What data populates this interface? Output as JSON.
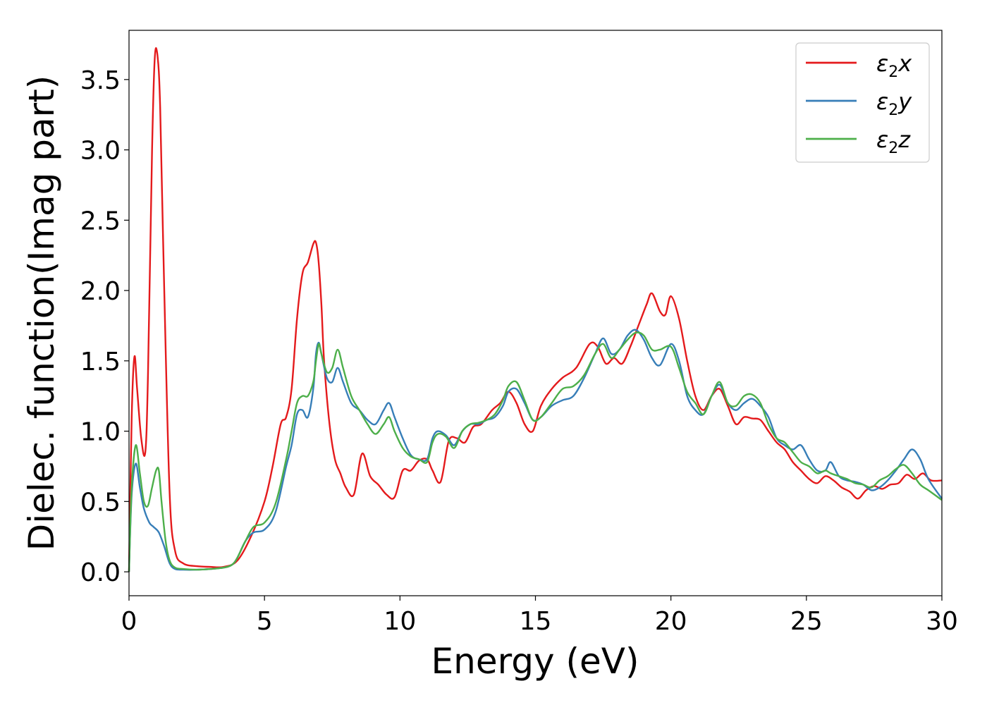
{
  "chart_data": {
    "type": "line",
    "title": "",
    "xlabel": "Energy (eV)",
    "ylabel": "Dielec. function(Imag part)",
    "xlim": [
      0,
      30
    ],
    "ylim": [
      -0.17,
      3.85
    ],
    "xticks": [
      0,
      5,
      10,
      15,
      20,
      25,
      30
    ],
    "yticks": [
      0.0,
      0.5,
      1.0,
      1.5,
      2.0,
      2.5,
      3.0,
      3.5
    ],
    "xtick_labels": [
      "0",
      "5",
      "10",
      "15",
      "20",
      "25",
      "30"
    ],
    "ytick_labels": [
      "0.0",
      "0.5",
      "1.0",
      "1.5",
      "2.0",
      "2.5",
      "3.0",
      "3.5"
    ],
    "grid": false,
    "legend_position": "top-right",
    "series": [
      {
        "name": "ε₂x",
        "legend_base": "ε",
        "legend_sub": "2",
        "legend_tail": "x",
        "color": "#e41a1c",
        "x": [
          0,
          0.1,
          0.2,
          0.3,
          0.45,
          0.6,
          0.7,
          0.85,
          0.95,
          1.05,
          1.15,
          1.3,
          1.5,
          1.7,
          2.0,
          2.5,
          3.0,
          3.5,
          4.0,
          4.5,
          5.0,
          5.3,
          5.6,
          5.8,
          6.0,
          6.2,
          6.4,
          6.6,
          6.8,
          6.9,
          7.0,
          7.1,
          7.2,
          7.4,
          7.6,
          7.8,
          8.0,
          8.3,
          8.6,
          8.9,
          9.2,
          9.5,
          9.8,
          10.1,
          10.4,
          10.7,
          11.0,
          11.2,
          11.5,
          11.8,
          12.1,
          12.4,
          12.7,
          13.0,
          13.4,
          13.7,
          14.0,
          14.3,
          14.6,
          14.9,
          15.2,
          15.6,
          16.0,
          16.5,
          17.0,
          17.3,
          17.6,
          17.9,
          18.2,
          18.5,
          18.8,
          19.1,
          19.3,
          19.6,
          19.8,
          20.0,
          20.3,
          20.6,
          20.9,
          21.2,
          21.5,
          21.8,
          22.1,
          22.4,
          22.7,
          23.0,
          23.3,
          23.6,
          23.9,
          24.2,
          24.5,
          24.8,
          25.1,
          25.4,
          25.7,
          26.0,
          26.3,
          26.6,
          26.9,
          27.2,
          27.5,
          27.8,
          28.1,
          28.4,
          28.7,
          29.0,
          29.3,
          29.6,
          30.0
        ],
        "values": [
          0.0,
          1.1,
          1.53,
          1.3,
          0.95,
          0.85,
          1.4,
          3.0,
          3.65,
          3.67,
          3.3,
          2.0,
          0.55,
          0.15,
          0.06,
          0.04,
          0.035,
          0.035,
          0.08,
          0.25,
          0.5,
          0.75,
          1.05,
          1.1,
          1.3,
          1.8,
          2.12,
          2.2,
          2.33,
          2.34,
          2.2,
          1.9,
          1.5,
          1.05,
          0.8,
          0.7,
          0.6,
          0.55,
          0.84,
          0.68,
          0.62,
          0.55,
          0.53,
          0.72,
          0.72,
          0.79,
          0.8,
          0.72,
          0.64,
          0.93,
          0.95,
          0.92,
          1.03,
          1.05,
          1.15,
          1.2,
          1.28,
          1.2,
          1.05,
          1.0,
          1.18,
          1.3,
          1.38,
          1.45,
          1.62,
          1.6,
          1.48,
          1.52,
          1.48,
          1.6,
          1.75,
          1.9,
          1.98,
          1.85,
          1.83,
          1.96,
          1.8,
          1.5,
          1.25,
          1.15,
          1.25,
          1.3,
          1.18,
          1.05,
          1.1,
          1.09,
          1.08,
          1.0,
          0.92,
          0.87,
          0.78,
          0.72,
          0.66,
          0.63,
          0.68,
          0.65,
          0.6,
          0.57,
          0.52,
          0.58,
          0.61,
          0.59,
          0.62,
          0.63,
          0.69,
          0.66,
          0.7,
          0.65,
          0.65
        ]
      },
      {
        "name": "ε₂y",
        "legend_base": "ε",
        "legend_sub": "2",
        "legend_tail": "y",
        "color": "#377eb8",
        "x": [
          0,
          0.1,
          0.25,
          0.4,
          0.55,
          0.75,
          0.9,
          1.1,
          1.3,
          1.5,
          1.7,
          2.0,
          2.5,
          3.0,
          3.5,
          3.8,
          4.0,
          4.3,
          4.6,
          5.0,
          5.4,
          5.8,
          6.0,
          6.2,
          6.4,
          6.6,
          6.8,
          6.9,
          7.0,
          7.1,
          7.3,
          7.5,
          7.7,
          7.9,
          8.2,
          8.5,
          8.8,
          9.1,
          9.4,
          9.6,
          9.8,
          10.1,
          10.4,
          10.7,
          11.0,
          11.2,
          11.4,
          11.7,
          12.0,
          12.3,
          12.6,
          12.9,
          13.2,
          13.5,
          13.8,
          14.0,
          14.3,
          14.6,
          14.9,
          15.2,
          15.6,
          16.0,
          16.4,
          16.8,
          17.2,
          17.5,
          17.8,
          18.1,
          18.4,
          18.7,
          19.0,
          19.3,
          19.6,
          20.0,
          20.3,
          20.6,
          20.9,
          21.2,
          21.5,
          21.8,
          22.1,
          22.4,
          22.7,
          23.0,
          23.3,
          23.6,
          23.9,
          24.2,
          24.5,
          24.8,
          25.1,
          25.4,
          25.7,
          25.9,
          26.2,
          26.5,
          26.8,
          27.1,
          27.4,
          27.7,
          28.0,
          28.3,
          28.6,
          28.9,
          29.2,
          29.5,
          30.0
        ],
        "values": [
          0.0,
          0.55,
          0.77,
          0.6,
          0.45,
          0.35,
          0.32,
          0.28,
          0.18,
          0.06,
          0.02,
          0.015,
          0.015,
          0.02,
          0.03,
          0.05,
          0.1,
          0.22,
          0.28,
          0.3,
          0.42,
          0.75,
          0.9,
          1.12,
          1.15,
          1.1,
          1.3,
          1.55,
          1.63,
          1.55,
          1.38,
          1.35,
          1.45,
          1.35,
          1.2,
          1.15,
          1.08,
          1.05,
          1.15,
          1.2,
          1.1,
          0.95,
          0.83,
          0.8,
          0.8,
          0.95,
          1.0,
          0.97,
          0.9,
          1.0,
          1.05,
          1.05,
          1.08,
          1.1,
          1.18,
          1.28,
          1.3,
          1.2,
          1.08,
          1.1,
          1.18,
          1.22,
          1.25,
          1.38,
          1.55,
          1.66,
          1.55,
          1.58,
          1.68,
          1.72,
          1.65,
          1.52,
          1.47,
          1.62,
          1.5,
          1.25,
          1.15,
          1.12,
          1.25,
          1.33,
          1.2,
          1.15,
          1.2,
          1.23,
          1.18,
          1.1,
          0.95,
          0.9,
          0.87,
          0.9,
          0.8,
          0.72,
          0.72,
          0.78,
          0.68,
          0.65,
          0.64,
          0.62,
          0.58,
          0.6,
          0.65,
          0.72,
          0.8,
          0.87,
          0.8,
          0.66,
          0.52
        ]
      },
      {
        "name": "ε₂z",
        "legend_base": "ε",
        "legend_sub": "2",
        "legend_tail": "z",
        "color": "#4daf4a",
        "x": [
          0,
          0.1,
          0.25,
          0.4,
          0.55,
          0.7,
          0.85,
          1.0,
          1.1,
          1.2,
          1.35,
          1.5,
          1.7,
          2.0,
          2.5,
          3.0,
          3.5,
          3.8,
          4.0,
          4.3,
          4.6,
          5.0,
          5.4,
          5.8,
          6.0,
          6.2,
          6.4,
          6.6,
          6.8,
          6.9,
          7.0,
          7.1,
          7.3,
          7.5,
          7.7,
          7.9,
          8.2,
          8.5,
          8.8,
          9.1,
          9.4,
          9.6,
          9.8,
          10.1,
          10.4,
          10.7,
          11.0,
          11.2,
          11.4,
          11.7,
          12.0,
          12.3,
          12.6,
          12.9,
          13.2,
          13.5,
          13.8,
          14.0,
          14.3,
          14.6,
          14.9,
          15.2,
          15.6,
          16.0,
          16.4,
          16.8,
          17.2,
          17.5,
          17.8,
          18.1,
          18.4,
          18.7,
          19.0,
          19.3,
          19.6,
          20.0,
          20.3,
          20.6,
          20.9,
          21.2,
          21.5,
          21.8,
          22.1,
          22.4,
          22.7,
          23.0,
          23.3,
          23.6,
          23.9,
          24.2,
          24.5,
          24.8,
          25.1,
          25.4,
          25.7,
          25.9,
          26.2,
          26.5,
          26.8,
          27.1,
          27.4,
          27.7,
          28.0,
          28.3,
          28.6,
          28.9,
          29.2,
          29.5,
          30.0
        ],
        "values": [
          0.0,
          0.6,
          0.9,
          0.7,
          0.5,
          0.47,
          0.6,
          0.72,
          0.72,
          0.5,
          0.22,
          0.08,
          0.03,
          0.02,
          0.015,
          0.02,
          0.03,
          0.05,
          0.1,
          0.22,
          0.32,
          0.35,
          0.48,
          0.8,
          1.0,
          1.2,
          1.25,
          1.25,
          1.35,
          1.5,
          1.62,
          1.55,
          1.42,
          1.45,
          1.58,
          1.45,
          1.25,
          1.15,
          1.05,
          0.98,
          1.05,
          1.1,
          1.0,
          0.88,
          0.82,
          0.8,
          0.78,
          0.92,
          0.98,
          0.96,
          0.88,
          1.0,
          1.05,
          1.06,
          1.08,
          1.12,
          1.22,
          1.32,
          1.35,
          1.22,
          1.08,
          1.1,
          1.2,
          1.3,
          1.32,
          1.4,
          1.55,
          1.62,
          1.52,
          1.58,
          1.65,
          1.7,
          1.68,
          1.58,
          1.58,
          1.6,
          1.45,
          1.28,
          1.2,
          1.12,
          1.25,
          1.35,
          1.2,
          1.18,
          1.25,
          1.26,
          1.2,
          1.05,
          0.95,
          0.92,
          0.85,
          0.78,
          0.75,
          0.7,
          0.72,
          0.7,
          0.68,
          0.66,
          0.63,
          0.62,
          0.6,
          0.65,
          0.68,
          0.73,
          0.76,
          0.7,
          0.62,
          0.58,
          0.51
        ]
      }
    ]
  }
}
